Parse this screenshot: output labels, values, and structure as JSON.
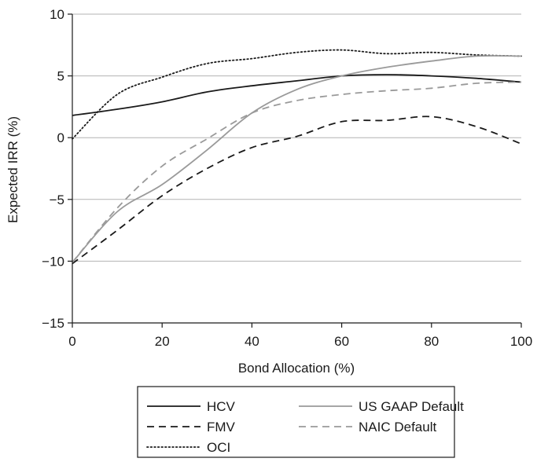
{
  "chart_data": {
    "type": "line",
    "xlabel": "Bond Allocation (%)",
    "ylabel": "Expected IRR (%)",
    "xlim": [
      0,
      100
    ],
    "ylim": [
      -15,
      10
    ],
    "xticks": [
      0,
      20,
      40,
      60,
      80,
      100
    ],
    "yticks": [
      -15,
      -10,
      -5,
      0,
      5,
      10
    ],
    "grid": "horizontal",
    "legend_position": "bottom",
    "x": [
      0,
      10,
      20,
      30,
      40,
      50,
      60,
      70,
      80,
      90,
      100
    ],
    "series": [
      {
        "name": "HCV",
        "color": "#1a1a1a",
        "dash": "solid",
        "values": [
          1.8,
          2.3,
          2.9,
          3.7,
          4.2,
          4.6,
          5.0,
          5.1,
          5.0,
          4.8,
          4.5
        ]
      },
      {
        "name": "FMV",
        "color": "#1a1a1a",
        "dash": "dashed",
        "values": [
          -10.2,
          -7.5,
          -4.7,
          -2.5,
          -0.8,
          0.1,
          1.3,
          1.4,
          1.7,
          0.9,
          -0.5
        ]
      },
      {
        "name": "OCI",
        "color": "#1a1a1a",
        "dash": "dotted",
        "values": [
          -0.1,
          3.5,
          4.9,
          6.0,
          6.4,
          6.9,
          7.1,
          6.8,
          6.9,
          6.7,
          6.6
        ]
      },
      {
        "name": "US GAAP Default",
        "color": "#9a9a9a",
        "dash": "solid",
        "values": [
          -10.1,
          -6.0,
          -3.8,
          -1.0,
          2.0,
          3.9,
          5.0,
          5.7,
          6.2,
          6.6,
          6.6
        ]
      },
      {
        "name": "NAIC Default",
        "color": "#9a9a9a",
        "dash": "dashed",
        "values": [
          -10.1,
          -5.7,
          -2.3,
          -0.1,
          2.0,
          3.0,
          3.5,
          3.8,
          4.0,
          4.4,
          4.5
        ]
      }
    ]
  }
}
